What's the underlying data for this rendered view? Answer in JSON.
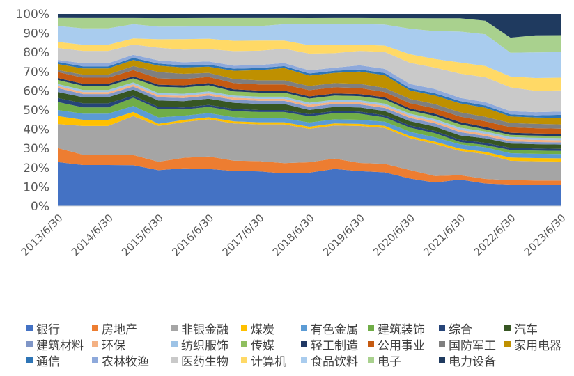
{
  "chart_data": {
    "type": "area",
    "stacked": "percent",
    "title": "",
    "xlabel": "",
    "ylabel": "",
    "ylim": [
      0,
      100
    ],
    "yticks": [
      "0%",
      "10%",
      "20%",
      "30%",
      "40%",
      "50%",
      "60%",
      "70%",
      "80%",
      "90%",
      "100%"
    ],
    "xticks": [
      "2013/6/30",
      "2014/6/30",
      "2015/6/30",
      "2016/6/30",
      "2017/6/30",
      "2018/6/30",
      "2019/6/30",
      "2020/6/30",
      "2021/6/30",
      "2022/6/30",
      "2023/6/30"
    ],
    "x": [
      "2013/6/30",
      "2013/12/31",
      "2014/6/30",
      "2014/12/31",
      "2015/6/30",
      "2015/12/31",
      "2016/6/30",
      "2016/12/31",
      "2017/6/30",
      "2017/12/31",
      "2018/6/30",
      "2018/12/31",
      "2019/6/30",
      "2019/12/31",
      "2020/6/30",
      "2020/12/31",
      "2021/6/30",
      "2021/12/31",
      "2022/6/30",
      "2022/12/31",
      "2023/6/30"
    ],
    "legend_position": "bottom",
    "grid": false,
    "series": [
      {
        "name": "银行",
        "color": "#4472C4",
        "values": [
          22,
          20,
          20,
          20,
          17,
          18,
          18,
          17,
          17,
          16,
          16,
          18,
          17,
          16,
          13,
          11,
          12,
          10,
          10,
          10,
          10
        ]
      },
      {
        "name": "房地产",
        "color": "#ED7D31",
        "values": [
          7,
          5,
          5,
          5,
          4,
          5,
          6,
          5,
          5,
          5,
          5,
          5,
          4,
          4,
          4,
          3,
          2,
          2,
          2,
          2,
          2
        ]
      },
      {
        "name": "非银金融",
        "color": "#A5A5A5",
        "values": [
          12,
          14,
          14,
          19,
          17,
          17,
          18,
          18,
          18,
          19,
          16,
          16,
          18,
          17,
          15,
          15,
          11,
          11,
          9,
          9,
          9
        ]
      },
      {
        "name": "煤炭",
        "color": "#FFC000",
        "values": [
          4,
          3,
          3,
          2,
          1,
          1,
          1,
          1,
          1,
          1,
          1,
          1,
          1,
          1,
          1,
          1,
          1,
          1,
          1.5,
          1.5,
          1.5
        ]
      },
      {
        "name": "有色金属",
        "color": "#5B9BD5",
        "values": [
          3,
          3,
          3,
          3,
          3,
          2,
          2,
          2,
          2,
          2,
          2,
          2,
          2,
          2,
          2,
          2,
          2,
          2,
          2,
          2,
          2
        ]
      },
      {
        "name": "建筑装饰",
        "color": "#70AD47",
        "values": [
          4,
          3,
          3,
          4,
          4,
          3,
          3,
          3,
          3,
          3,
          3,
          3,
          3,
          2,
          2,
          2,
          1,
          1,
          1.5,
          1.5,
          1.5
        ]
      },
      {
        "name": "综合",
        "color": "#264478",
        "values": [
          2,
          2,
          2,
          1,
          1,
          1,
          1,
          1,
          1,
          1,
          1,
          1,
          1,
          1,
          1,
          1,
          1,
          1,
          1,
          1,
          1
        ]
      },
      {
        "name": "汽车",
        "color": "#375623",
        "values": [
          3,
          3,
          3,
          3,
          3,
          3,
          3,
          3,
          3,
          3,
          2,
          2,
          2,
          2,
          2,
          2,
          2,
          2,
          2,
          2,
          2
        ]
      },
      {
        "name": "建筑材料",
        "color": "#7F96C7",
        "values": [
          2,
          1.5,
          1.5,
          1.5,
          1.5,
          1.5,
          1.5,
          1.5,
          1.5,
          1.5,
          1.5,
          1.5,
          1.5,
          1.5,
          1.5,
          1.5,
          1.5,
          1,
          1,
          1,
          1
        ]
      },
      {
        "name": "环保",
        "color": "#F4B183",
        "values": [
          1,
          1,
          1,
          1,
          1,
          1,
          1,
          1,
          1,
          1,
          1,
          1,
          1,
          1,
          1,
          1,
          1,
          1,
          1,
          1,
          1
        ]
      },
      {
        "name": "纺织服饰",
        "color": "#9DC3E6",
        "values": [
          1,
          1,
          1,
          1,
          1,
          1,
          1,
          1,
          1,
          1,
          1,
          1,
          1,
          1,
          1,
          1,
          1,
          1,
          1,
          1,
          1
        ]
      },
      {
        "name": "传媒",
        "color": "#8FBF5F",
        "values": [
          2,
          2,
          2,
          2,
          3,
          3,
          3,
          2,
          2,
          2,
          2,
          2,
          2,
          2,
          1.5,
          1.5,
          1.5,
          1,
          1,
          1,
          1
        ]
      },
      {
        "name": "轻工制造",
        "color": "#203864",
        "values": [
          1,
          1,
          1,
          1,
          1,
          1,
          1,
          1,
          1,
          1,
          1,
          1,
          1,
          1,
          1,
          1,
          1,
          1,
          1,
          1,
          1
        ]
      },
      {
        "name": "公用事业",
        "color": "#C55A11",
        "values": [
          3,
          3,
          3,
          3,
          3,
          3,
          3,
          3,
          3,
          3,
          3,
          3,
          3,
          2.5,
          2.5,
          2.5,
          2.5,
          2.5,
          2.5,
          2.5,
          2.5
        ]
      },
      {
        "name": "国防军工",
        "color": "#7F7F7F",
        "values": [
          1,
          1.5,
          1.5,
          2,
          3,
          2.5,
          2,
          2,
          2,
          2,
          2,
          2,
          2,
          2,
          2,
          2,
          2,
          2,
          2,
          2,
          2
        ]
      },
      {
        "name": "家用电器",
        "color": "#BF9000",
        "values": [
          3,
          3,
          3,
          3,
          3,
          3,
          3,
          4,
          5,
          6,
          5,
          5,
          6,
          6,
          4,
          4,
          4,
          4,
          3,
          3,
          3
        ]
      },
      {
        "name": "通信",
        "color": "#2E75B6",
        "values": [
          1,
          1,
          1,
          1,
          1,
          1,
          1,
          1,
          1,
          1,
          1,
          1,
          1,
          1,
          1,
          1,
          1,
          1,
          1,
          1,
          1.5
        ]
      },
      {
        "name": "农林牧渔",
        "color": "#8EA9DB",
        "values": [
          1,
          1.5,
          1.5,
          1.5,
          1.5,
          1.5,
          1.5,
          1.5,
          1.5,
          1.5,
          1.5,
          1.5,
          2,
          2,
          2,
          2,
          1.5,
          1.5,
          1.5,
          1.5,
          1.5
        ]
      },
      {
        "name": "医药生物",
        "color": "#C9C9C9",
        "values": [
          6,
          6,
          6,
          5,
          6,
          6,
          6,
          7,
          7,
          7,
          8,
          7,
          7,
          8,
          10,
          10,
          11,
          11,
          11,
          10,
          10
        ]
      },
      {
        "name": "计算机",
        "color": "#FFD966",
        "values": [
          3,
          3,
          3,
          3,
          4,
          5,
          5,
          5,
          5,
          4,
          4,
          4,
          3,
          3,
          4,
          4,
          5,
          5,
          5,
          6,
          6
        ]
      },
      {
        "name": "食品饮料",
        "color": "#A9CCEE",
        "values": [
          8,
          8,
          8,
          7,
          6,
          6,
          6,
          7,
          7,
          8,
          10,
          10,
          10,
          10,
          12,
          13,
          14,
          14,
          11,
          12,
          12
        ]
      },
      {
        "name": "电子",
        "color": "#A9D18E",
        "values": [
          4,
          5,
          5,
          3,
          4,
          4,
          4,
          4,
          4,
          3,
          3,
          3,
          3,
          3,
          5,
          6,
          6,
          6,
          7,
          8,
          8
        ]
      },
      {
        "name": "电力设备",
        "color": "#1F3A5F",
        "values": [
          2,
          2,
          2,
          2,
          2,
          2,
          2,
          2,
          2,
          2,
          2,
          2,
          2,
          2,
          2,
          2,
          2,
          3,
          11,
          10,
          10
        ]
      }
    ]
  }
}
